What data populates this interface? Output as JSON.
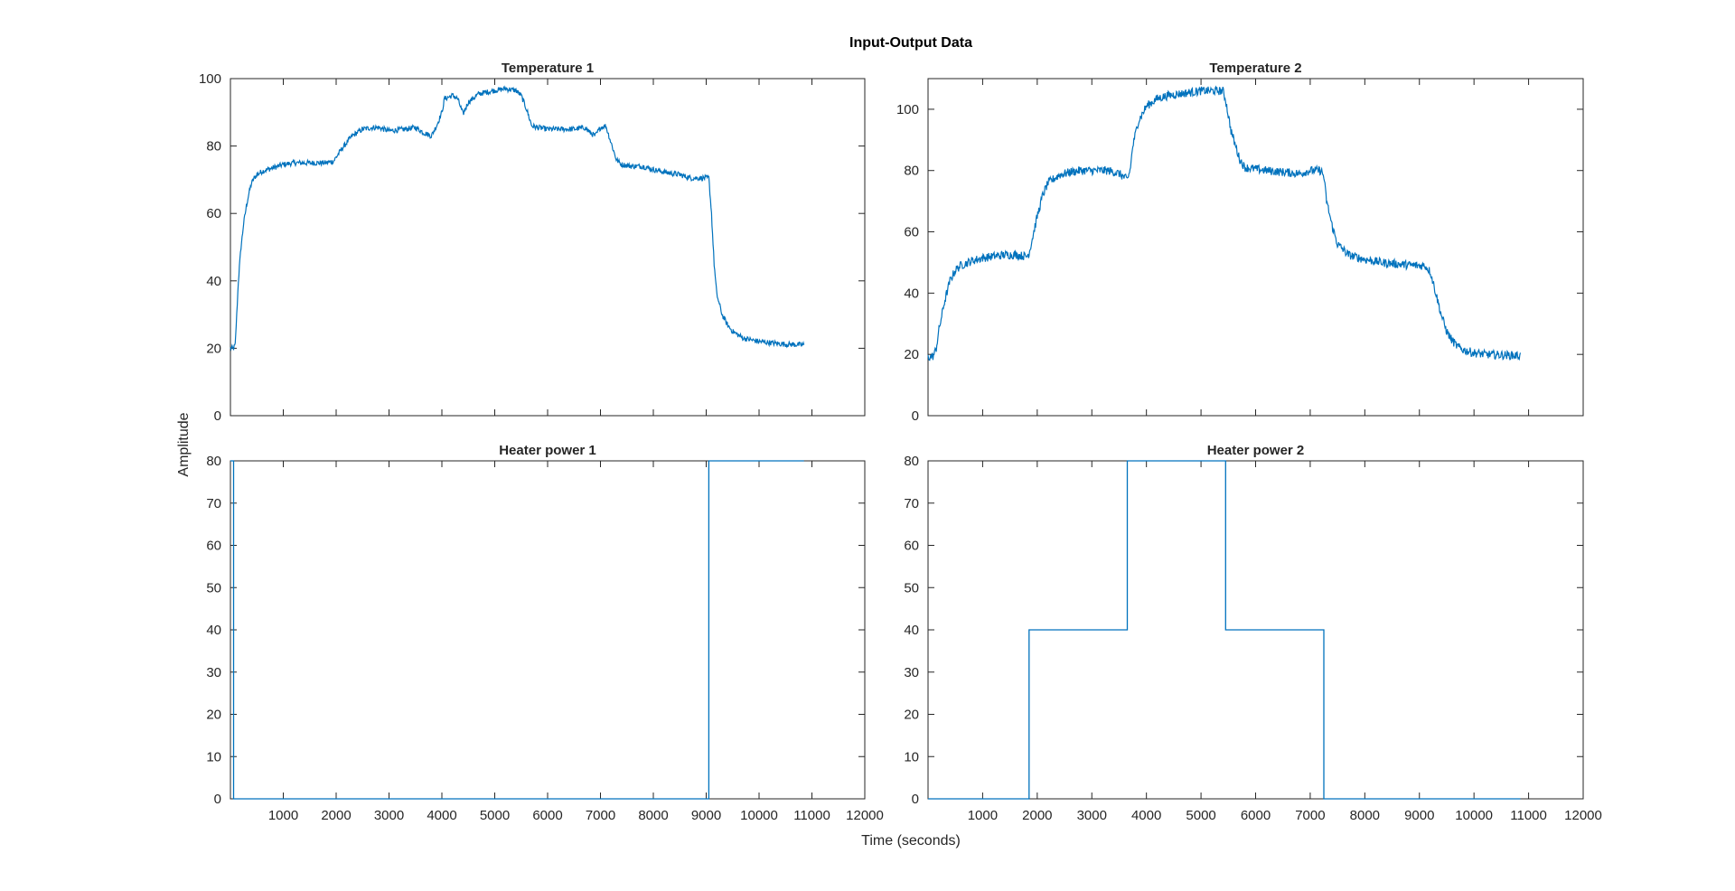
{
  "figure": {
    "title": "Input-Output Data",
    "xlabel": "Time (seconds)",
    "ylabel": "Amplitude",
    "line_color": "#0072BD",
    "axes_color": "#262626"
  },
  "chart_data": [
    {
      "type": "line",
      "title": "Temperature 1",
      "xlim": [
        0,
        12000
      ],
      "ylim": [
        0,
        100
      ],
      "xticks": [
        1000,
        2000,
        3000,
        4000,
        5000,
        6000,
        7000,
        8000,
        9000,
        10000,
        11000,
        12000
      ],
      "yticks": [
        0,
        20,
        40,
        60,
        80,
        100
      ],
      "noise": 0.8,
      "series": [
        {
          "x": [
            0,
            60,
            90,
            120,
            150,
            200,
            250,
            300,
            350,
            400,
            450,
            500,
            600,
            800,
            1000,
            1200,
            1500,
            1800,
            1950,
            2100,
            2300,
            2500,
            2700,
            2800,
            3000,
            3300,
            3500,
            3650,
            3800,
            3900,
            4000,
            4050,
            4200,
            4300,
            4400,
            4500,
            4700,
            5000,
            5200,
            5400,
            5500,
            5600,
            5700,
            5800,
            6000,
            6200,
            6500,
            6700,
            6800,
            6900,
            7000,
            7100,
            7200,
            7300,
            7400,
            7600,
            7800,
            8000,
            8300,
            8500,
            8700,
            9000,
            9050,
            9100,
            9150,
            9200,
            9300,
            9400,
            9500,
            9700,
            10000,
            10300,
            10500,
            10850
          ],
          "y": [
            20,
            20,
            21,
            30,
            40,
            50,
            57,
            62,
            66,
            69,
            70.5,
            71.5,
            72.5,
            73.5,
            74.5,
            75,
            75,
            75,
            75.5,
            79,
            83,
            85,
            85.5,
            85.5,
            84.5,
            85,
            85.5,
            84,
            83,
            86,
            90,
            94,
            95,
            94,
            89.5,
            93,
            95.5,
            96.5,
            97,
            96.5,
            95,
            91,
            86,
            85.5,
            85,
            85,
            85,
            85.5,
            84,
            83,
            85.5,
            86,
            81,
            76,
            74.5,
            74,
            74,
            73,
            72,
            71.5,
            70.5,
            70.5,
            70.5,
            60,
            45,
            36,
            30,
            27,
            25,
            23,
            22,
            21.5,
            21.2,
            21
          ]
        }
      ]
    },
    {
      "type": "line",
      "title": "Temperature 2",
      "xlim": [
        0,
        12000
      ],
      "ylim": [
        0,
        110
      ],
      "xticks": [
        1000,
        2000,
        3000,
        4000,
        5000,
        6000,
        7000,
        8000,
        9000,
        10000,
        11000,
        12000
      ],
      "yticks": [
        0,
        20,
        40,
        60,
        80,
        100
      ],
      "noise": 1.4,
      "series": [
        {
          "x": [
            0,
            100,
            150,
            200,
            300,
            400,
            500,
            600,
            800,
            1000,
            1200,
            1400,
            1600,
            1800,
            1850,
            1900,
            2000,
            2100,
            2200,
            2400,
            2600,
            2800,
            3000,
            3300,
            3500,
            3650,
            3700,
            3750,
            3850,
            4000,
            4200,
            4400,
            4600,
            4800,
            5000,
            5200,
            5400,
            5450,
            5550,
            5700,
            5800,
            6000,
            6200,
            6500,
            6800,
            7000,
            7200,
            7250,
            7300,
            7400,
            7500,
            7700,
            8000,
            8300,
            8600,
            8900,
            9100,
            9200,
            9300,
            9400,
            9500,
            9600,
            9700,
            9800,
            10000,
            10200,
            10500,
            10850
          ],
          "y": [
            19,
            19.5,
            22,
            28,
            37,
            44,
            47.5,
            49,
            50.5,
            51.5,
            52,
            52.5,
            52.5,
            52,
            53,
            57,
            65,
            72,
            76,
            78.5,
            79.5,
            80,
            80,
            80,
            79,
            77,
            80,
            88,
            96,
            101,
            103.5,
            104.5,
            105,
            105.5,
            106,
            106,
            106,
            103,
            93,
            84,
            81,
            80.5,
            80,
            79.5,
            79,
            80,
            80,
            78,
            70,
            62,
            56,
            52.5,
            51,
            50,
            49.5,
            49,
            49,
            47,
            40,
            33,
            27.5,
            24.5,
            22.5,
            21.5,
            20.5,
            20,
            19.8,
            19.6
          ]
        }
      ]
    },
    {
      "type": "line",
      "title": "Heater power 1",
      "xlim": [
        0,
        12000
      ],
      "ylim": [
        0,
        80
      ],
      "xticks": [
        1000,
        2000,
        3000,
        4000,
        5000,
        6000,
        7000,
        8000,
        9000,
        10000,
        11000,
        12000
      ],
      "yticks": [
        0,
        10,
        20,
        30,
        40,
        50,
        60,
        70,
        80
      ],
      "noise": 0,
      "series": [
        {
          "x": [
            0,
            60,
            60,
            9050,
            9050,
            10850
          ],
          "y": [
            80,
            80,
            0,
            0,
            80,
            80
          ]
        }
      ]
    },
    {
      "type": "line",
      "title": "Heater power 2",
      "xlim": [
        0,
        12000
      ],
      "ylim": [
        0,
        80
      ],
      "xticks": [
        1000,
        2000,
        3000,
        4000,
        5000,
        6000,
        7000,
        8000,
        9000,
        10000,
        11000,
        12000
      ],
      "yticks": [
        0,
        10,
        20,
        30,
        40,
        50,
        60,
        70,
        80
      ],
      "noise": 0,
      "series": [
        {
          "x": [
            0,
            1850,
            1850,
            3650,
            3650,
            5450,
            5450,
            7250,
            7250,
            10850
          ],
          "y": [
            0,
            0,
            40,
            40,
            80,
            80,
            40,
            40,
            0,
            0
          ]
        }
      ]
    }
  ]
}
